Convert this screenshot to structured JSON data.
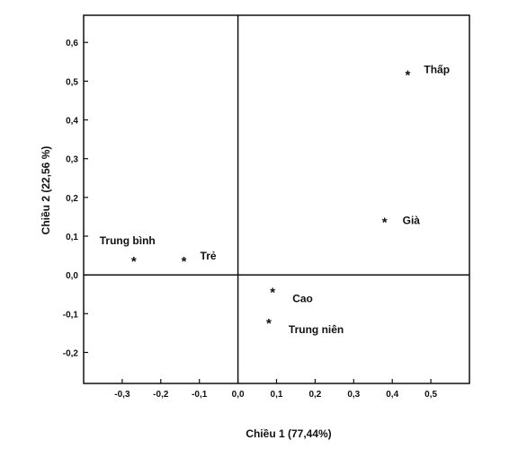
{
  "chart_data": {
    "type": "scatter",
    "xlabel": "Chiều 1 (77,44%)",
    "ylabel": "Chiều 2 (22,56 %)",
    "xlim": [
      -0.4,
      0.6
    ],
    "ylim": [
      -0.28,
      0.67
    ],
    "x_ticks": [
      -0.3,
      -0.2,
      -0.1,
      0.0,
      0.1,
      0.2,
      0.3,
      0.4,
      0.5
    ],
    "x_tick_labels": [
      "-0,3",
      "-0,2",
      "-0,1",
      "0,0",
      "0,1",
      "0,2",
      "0,3",
      "0,4",
      "0,5"
    ],
    "y_ticks": [
      -0.2,
      -0.1,
      0.0,
      0.1,
      0.2,
      0.3,
      0.4,
      0.5,
      0.6
    ],
    "y_tick_labels": [
      "-0,2",
      "-0,1",
      "0,0",
      "0,1",
      "0,2",
      "0,3",
      "0,4",
      "0,5",
      "0,6"
    ],
    "reference_lines": {
      "x": 0,
      "y": 0
    },
    "marker": "*",
    "points": [
      {
        "label": "Thấp",
        "x": 0.44,
        "y": 0.52,
        "label_position": "upper-right"
      },
      {
        "label": "Già",
        "x": 0.38,
        "y": 0.14,
        "label_position": "right"
      },
      {
        "label": "Trung bình",
        "x": -0.27,
        "y": 0.04,
        "label_position": "upper-left"
      },
      {
        "label": "Trẻ",
        "x": -0.14,
        "y": 0.04,
        "label_position": "upper-right"
      },
      {
        "label": "Cao",
        "x": 0.09,
        "y": -0.04,
        "label_position": "lower-right"
      },
      {
        "label": "Trung niên",
        "x": 0.08,
        "y": -0.12,
        "label_position": "lower-right"
      }
    ]
  }
}
